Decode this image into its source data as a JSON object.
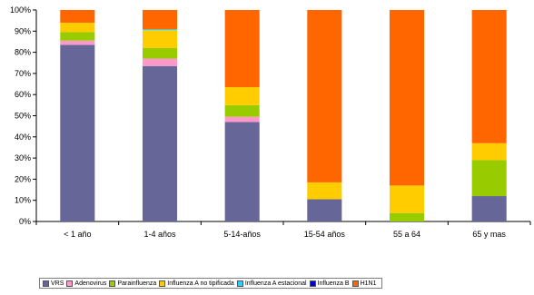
{
  "chart_data": {
    "type": "bar",
    "stacked": true,
    "percent": true,
    "title": "",
    "xlabel": "",
    "ylabel": "",
    "ylim": [
      0,
      100
    ],
    "y_ticks": [
      "0%",
      "10%",
      "20%",
      "30%",
      "40%",
      "50%",
      "60%",
      "70%",
      "80%",
      "90%",
      "100%"
    ],
    "grid": false,
    "legend_position": "bottom",
    "categories": [
      "< 1 año",
      "1-4 años",
      "5-14-años",
      "15-54 años",
      "55 a 64",
      "65 y mas"
    ],
    "series": [
      {
        "name": "VRS",
        "color": "#666699",
        "values": [
          83.5,
          73.5,
          47,
          10.5,
          0,
          12
        ]
      },
      {
        "name": "Adenovirus",
        "color": "#ff99cc",
        "values": [
          2,
          3.5,
          2.5,
          0,
          0,
          0
        ]
      },
      {
        "name": "Parainfluenza",
        "color": "#99cc00",
        "values": [
          4,
          5,
          5.5,
          0,
          4,
          17
        ]
      },
      {
        "name": "Influenza A no tipificada",
        "color": "#ffcc00",
        "values": [
          4.5,
          8.5,
          8.5,
          8,
          13,
          8
        ]
      },
      {
        "name": "Influenza A estacional",
        "color": "#33ccff",
        "values": [
          0,
          0.5,
          0,
          0,
          0,
          0
        ]
      },
      {
        "name": "Influenza B",
        "color": "#0000cc",
        "values": [
          0,
          0,
          0,
          0,
          0,
          0
        ]
      },
      {
        "name": "H1N1",
        "color": "#ff6600",
        "values": [
          6,
          9,
          36.5,
          81.5,
          83,
          63
        ]
      }
    ]
  }
}
